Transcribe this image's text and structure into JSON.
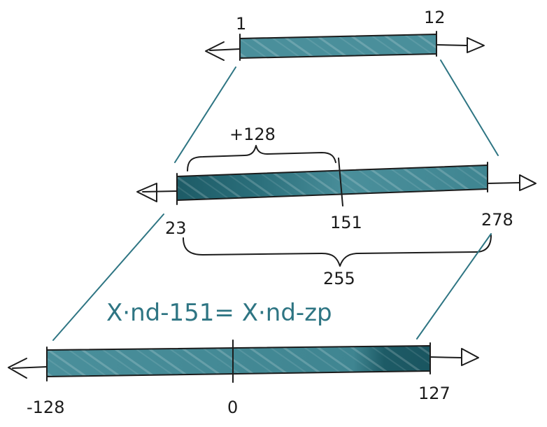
{
  "colors": {
    "bar_fill": "#4a8f9b",
    "bar_dark": "#1d5b66",
    "ink": "#1c1c1c",
    "teal_text": "#2e7583"
  },
  "top_bar": {
    "left_label": "1",
    "right_label": "12"
  },
  "middle_bar": {
    "left_label": "23",
    "tick_label": "151",
    "right_label": "278",
    "offset_label": "+128",
    "span_label": "255"
  },
  "equation": "X·nd-151= X·nd-zp",
  "bottom_bar": {
    "left_label": "-128",
    "tick_label": "0",
    "right_label": "127"
  }
}
